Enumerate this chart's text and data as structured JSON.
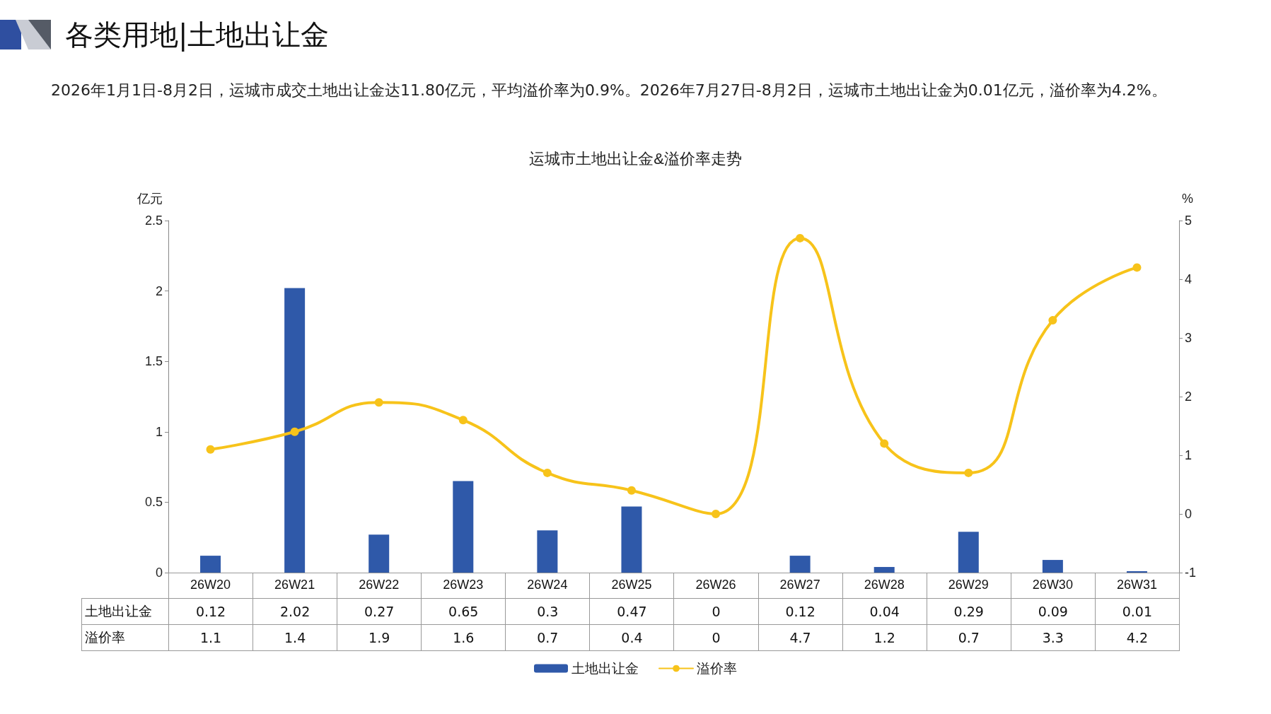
{
  "chart_data": {
    "type": "bar",
    "title": "运城市土地出让金&溢价率走势",
    "annotations": [
      "各类用地|土地出让金",
      "2026年1月1日-8月2日，运城市成交土地出让金达11.80亿元，平均溢价率为0.9%。2026年7月27日-8月2日，运城市土地出让金为0.01亿元，溢价率为4.2%。"
    ],
    "ylabel": "亿元",
    "y2label": "%",
    "categories": [
      "26W20",
      "26W21",
      "26W22",
      "26W23",
      "26W24",
      "26W25",
      "26W26",
      "26W27",
      "26W28",
      "26W29",
      "26W30",
      "26W31"
    ],
    "series": [
      {
        "name": "土地出让金",
        "color": "#2f59a9",
        "values": [
          0.12,
          2.02,
          0.27,
          0.65,
          0.3,
          0.47,
          0,
          0.12,
          0.04,
          0.29,
          0.09,
          0.01
        ]
      },
      {
        "name": "溢价率",
        "type": "line",
        "axis": "y2",
        "color": "#f7c31a",
        "values": [
          1.1,
          1.4,
          1.9,
          1.6,
          0.7,
          0.4,
          0,
          4.7,
          1.2,
          0.7,
          3.3,
          4.2
        ]
      }
    ],
    "ylim": [
      0,
      2.5
    ],
    "yticks": [
      0,
      0.5,
      1,
      1.5,
      2,
      2.5
    ],
    "y2lim": [
      -1,
      5
    ],
    "y2ticks": [
      -1,
      0,
      1,
      2,
      3,
      4,
      5
    ],
    "data_labels": true,
    "legend": "bottom",
    "grid": false,
    "marker": "circle",
    "line_style": "solid"
  }
}
